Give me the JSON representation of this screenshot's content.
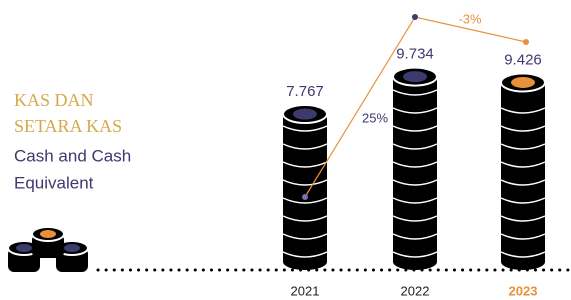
{
  "chart_data": {
    "type": "bar",
    "title_lines": [
      "KAS DAN",
      "SETARA KAS"
    ],
    "subtitle_lines": [
      "Cash and Cash",
      "Equivalent"
    ],
    "categories": [
      "2021",
      "2022",
      "2023"
    ],
    "values": [
      7.767,
      9.734,
      9.426
    ],
    "colors": [
      "#3d3a6e",
      "#3d3a6e",
      "#e8913a"
    ],
    "ylim": [
      0,
      10.5
    ],
    "annotations": [
      "25%",
      "-3%"
    ]
  }
}
